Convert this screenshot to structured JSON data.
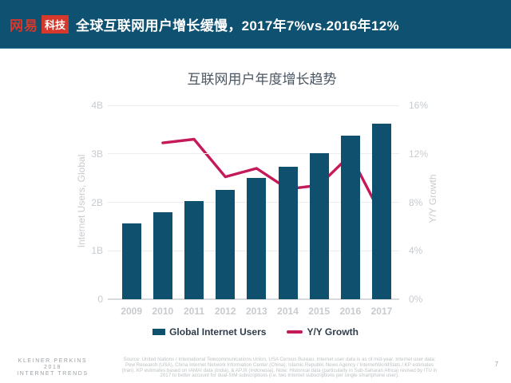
{
  "header": {
    "logo": {
      "brand": "网易",
      "badge": "科技"
    },
    "title": "全球互联网用户增长缓慢，2017年7%vs.2016年12%"
  },
  "chart_data": {
    "type": "bar",
    "title": "互联网用户年度增长趋势",
    "categories": [
      "2009",
      "2010",
      "2011",
      "2012",
      "2013",
      "2014",
      "2015",
      "2016",
      "2017"
    ],
    "series": [
      {
        "name": "Global Internet Users",
        "type": "bar",
        "axis": "left",
        "unit": "B",
        "values": [
          1.57,
          1.79,
          2.03,
          2.26,
          2.5,
          2.73,
          3.02,
          3.38,
          3.62
        ]
      },
      {
        "name": "Y/Y Growth",
        "type": "line",
        "axis": "right",
        "unit": "%",
        "values": [
          null,
          12.9,
          13.2,
          10.1,
          10.8,
          9.1,
          9.4,
          11.9,
          6.9
        ]
      }
    ],
    "left_axis": {
      "label": "Internet Users, Global",
      "min": 0,
      "max": 4,
      "ticks": [
        "0",
        "1B",
        "2B",
        "3B",
        "4B"
      ]
    },
    "right_axis": {
      "label": "Y/Y Growth",
      "min": 0,
      "max": 16,
      "ticks": [
        "0%",
        "4%",
        "8%",
        "12%",
        "16%"
      ]
    },
    "legend": [
      {
        "label": "Global Internet Users",
        "swatch": "bar"
      },
      {
        "label": "Y/Y Growth",
        "swatch": "line"
      }
    ],
    "grid": true,
    "legend_position": "bottom"
  },
  "colors": {
    "header_bg": "#0e5170",
    "logo_red": "#d6382b",
    "bar": "#0f506e",
    "line": "#c5195a",
    "grid": "#ececee",
    "axis_line": "#d7dadd",
    "tick_text": "#c7cbcf",
    "title_text": "#4b5662",
    "legend_text": "#2f3d4b",
    "footer_text": "#9ca1a5",
    "source_text": "#bdc1c4"
  },
  "footer": {
    "brand_lines": [
      "KLEINER PERKINS",
      "2018",
      "INTERNET TRENDS"
    ],
    "source": "Source: United Nations / International Telecommunications Union, USA Census Bureau. Internet user data is as of mid-year. Internet user data: Pew Research (USA), China Internet Network Information Center (China), Islamic Republic News Agency / InternetWorldStats / KP estimates (Iran). KP estimates based on IAMAI data (India), & APJII (Indonesia). Note: Historical data (particularly in Sub-Saharan Africa) revised by ITU in 2017 to better account for dual-SIM subscriptions (i.e. two Internet subscriptions per single smartphone user).",
    "page_number": "7"
  }
}
